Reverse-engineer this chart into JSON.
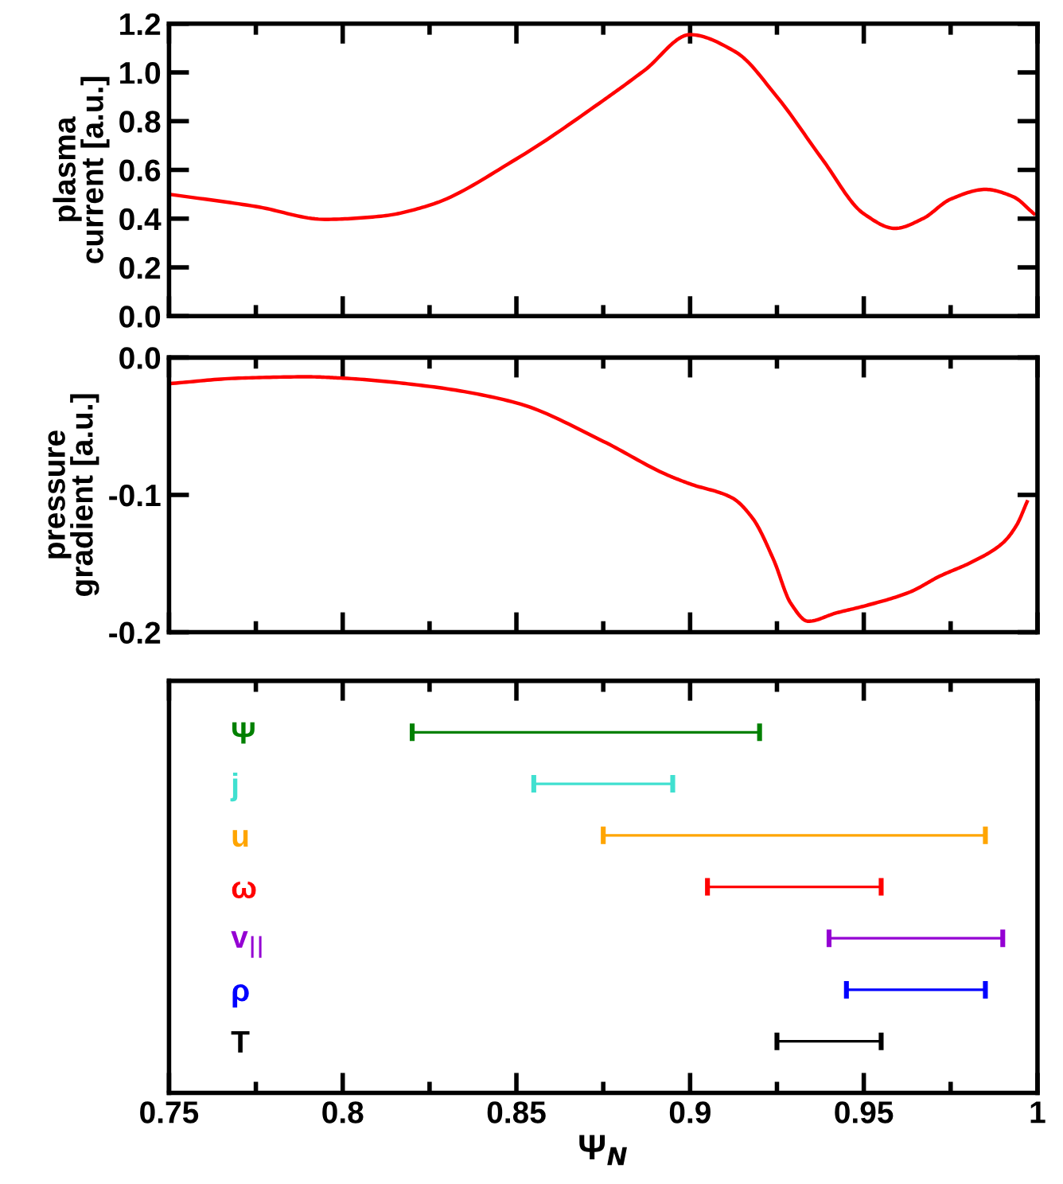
{
  "chart_data": [
    {
      "type": "line",
      "ylabel": "plasma\ncurrent [a.u.]",
      "x": [
        0.75,
        0.775,
        0.795,
        0.811,
        0.825,
        0.85,
        0.875,
        0.887,
        0.9,
        0.913,
        0.925,
        0.938,
        0.95,
        0.959,
        0.967,
        0.975,
        0.985,
        0.993,
        0.999
      ],
      "series": [
        {
          "color": "#ff0000",
          "values": [
            0.5,
            0.45,
            0.397,
            0.41,
            0.455,
            0.645,
            0.885,
            1.01,
            1.155,
            1.085,
            0.9,
            0.645,
            0.42,
            0.36,
            0.4,
            0.48,
            0.52,
            0.49,
            0.42
          ]
        }
      ],
      "xlim": [
        0.75,
        1
      ],
      "xticks": [
        0.75,
        0.8,
        0.85,
        0.9,
        0.95,
        1
      ],
      "ylim": [
        0,
        1.2
      ],
      "yticks": [
        {
          "value": 0,
          "label": "0.0"
        },
        0.2,
        0.4,
        0.6,
        0.8,
        {
          "value": 1,
          "label": "1.0"
        },
        1.2
      ],
      "tick_labels": "y",
      "grid": false,
      "legend": false,
      "marker": "none",
      "line_style": "solid"
    },
    {
      "type": "line",
      "ylabel": "pressure\ngradient [a.u.]",
      "x": [
        0.75,
        0.77,
        0.79,
        0.8,
        0.825,
        0.85,
        0.875,
        0.893,
        0.9,
        0.912,
        0.918,
        0.924,
        0.929,
        0.934,
        0.942,
        0.95,
        0.963,
        0.972,
        0.981,
        0.99,
        0.994,
        0.997
      ],
      "series": [
        {
          "color": "#ff0000",
          "values": [
            -0.019,
            -0.015,
            -0.014,
            -0.015,
            -0.021,
            -0.033,
            -0.061,
            -0.085,
            -0.092,
            -0.102,
            -0.117,
            -0.147,
            -0.179,
            -0.192,
            -0.186,
            -0.181,
            -0.171,
            -0.159,
            -0.149,
            -0.135,
            -0.122,
            -0.105
          ]
        }
      ],
      "xlim": [
        0.75,
        1
      ],
      "xticks": [
        0.75,
        0.8,
        0.85,
        0.9,
        0.95,
        1
      ],
      "ylim": [
        -0.2,
        0
      ],
      "yticks": [
        {
          "value": 0,
          "label": "0.0"
        },
        {
          "value": -0.1,
          "label": "-0.1"
        },
        {
          "value": -0.2,
          "label": "-0.2"
        }
      ],
      "tick_labels": "y",
      "grid": false,
      "legend": false,
      "marker": "none",
      "line_style": "solid"
    },
    {
      "type": "bar",
      "orientation": "horizontal",
      "xlabel": "Ψ$_{N}$",
      "categories": [
        "Ψ",
        "j",
        "u",
        "ω",
        "v$_{||}$",
        "ρ",
        "T"
      ],
      "base": [
        0.82,
        0.855,
        0.875,
        0.905,
        0.94,
        0.945,
        0.925
      ],
      "values": [
        0.1,
        0.04,
        0.11,
        0.05,
        0.05,
        0.04,
        0.03
      ],
      "colors": [
        "#008000",
        "#40e0d0",
        "#ffa500",
        "#ff0000",
        "#9400d3",
        "#0000ff",
        "#000000"
      ],
      "xlim": [
        0.75,
        1
      ],
      "xticks": [
        0.75,
        0.8,
        0.85,
        0.9,
        0.95,
        1
      ],
      "grid": false,
      "legend": false
    }
  ]
}
